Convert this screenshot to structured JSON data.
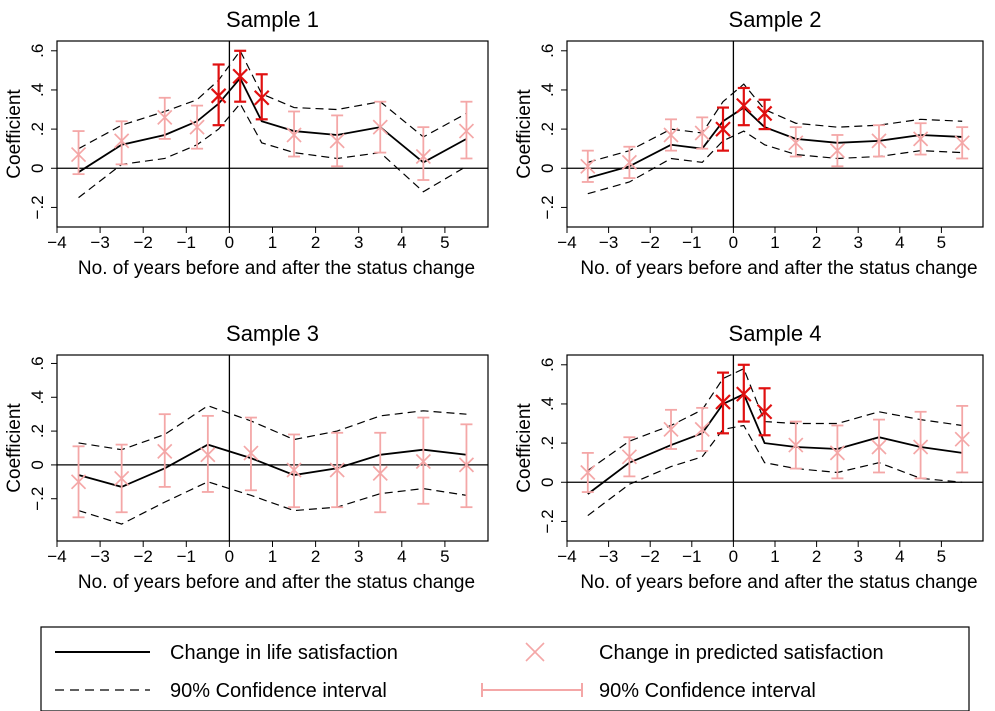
{
  "colors": {
    "line": "#000000",
    "ci_dash": "#000000",
    "marker_light": "#f4a7a7",
    "marker_dark": "#e01010",
    "errorbar_light": "#f4a7a7",
    "errorbar_dark": "#e01010"
  },
  "chart_data": [
    {
      "type": "line",
      "title": "Sample 1",
      "xlabel": "No. of years before and after the status change",
      "ylabel": "Coefficient",
      "xlim": [
        -4,
        6
      ],
      "ylim": [
        -0.3,
        0.65
      ],
      "xticks": [
        "-4",
        "-3",
        "-2",
        "-1",
        "0",
        "1",
        "2",
        "3",
        "4",
        "5"
      ],
      "yticks": [
        "-.2",
        "0",
        ".2",
        ".4",
        ".6"
      ],
      "reference_lines": {
        "x": 0,
        "y": 0
      },
      "line_series": {
        "name": "Change in life satisfaction",
        "x": [
          -3.5,
          -2.5,
          -1.5,
          -0.75,
          -0.25,
          0.25,
          0.75,
          1.5,
          2.5,
          3.5,
          4.5,
          5.5
        ],
        "y": [
          -0.02,
          0.12,
          0.17,
          0.24,
          0.33,
          0.46,
          0.24,
          0.19,
          0.17,
          0.21,
          0.03,
          0.15
        ],
        "ci_lower": [
          -0.15,
          0.02,
          0.05,
          0.12,
          0.2,
          0.33,
          0.13,
          0.08,
          0.05,
          0.08,
          -0.12,
          0.01
        ],
        "ci_upper": [
          0.1,
          0.22,
          0.29,
          0.35,
          0.45,
          0.6,
          0.38,
          0.31,
          0.3,
          0.34,
          0.16,
          0.28
        ]
      },
      "predicted_series": {
        "name": "Change in predicted satisfaction",
        "x": [
          -3.5,
          -2.5,
          -1.5,
          -0.75,
          -0.25,
          0.25,
          0.75,
          1.5,
          2.5,
          3.5,
          4.5,
          5.5
        ],
        "y": [
          0.07,
          0.14,
          0.26,
          0.21,
          0.37,
          0.47,
          0.36,
          0.17,
          0.14,
          0.21,
          0.06,
          0.19
        ],
        "ci_lower": [
          -0.03,
          0.02,
          0.15,
          0.1,
          0.22,
          0.34,
          0.25,
          0.06,
          0.01,
          0.08,
          -0.06,
          0.05
        ],
        "ci_upper": [
          0.19,
          0.24,
          0.36,
          0.32,
          0.53,
          0.6,
          0.48,
          0.29,
          0.27,
          0.34,
          0.21,
          0.34
        ],
        "emphasis": [
          false,
          false,
          false,
          false,
          true,
          true,
          true,
          false,
          false,
          false,
          false,
          false
        ]
      }
    },
    {
      "type": "line",
      "title": "Sample 2",
      "xlabel": "No. of years before and after the status change",
      "ylabel": "Coefficient",
      "xlim": [
        -4,
        6
      ],
      "ylim": [
        -0.3,
        0.65
      ],
      "xticks": [
        "-4",
        "-3",
        "-2",
        "-1",
        "0",
        "1",
        "2",
        "3",
        "4",
        "5"
      ],
      "yticks": [
        "-.2",
        "0",
        ".2",
        ".4",
        ".6"
      ],
      "reference_lines": {
        "x": 0,
        "y": 0
      },
      "line_series": {
        "name": "Change in life satisfaction",
        "x": [
          -3.5,
          -2.5,
          -1.5,
          -0.75,
          -0.25,
          0.25,
          0.75,
          1.5,
          2.5,
          3.5,
          4.5,
          5.5
        ],
        "y": [
          -0.05,
          0.01,
          0.12,
          0.1,
          0.24,
          0.31,
          0.21,
          0.15,
          0.13,
          0.14,
          0.17,
          0.16
        ],
        "ci_lower": [
          -0.13,
          -0.07,
          0.05,
          0.03,
          0.14,
          0.19,
          0.12,
          0.07,
          0.05,
          0.06,
          0.09,
          0.08
        ],
        "ci_upper": [
          0.03,
          0.09,
          0.2,
          0.18,
          0.34,
          0.43,
          0.3,
          0.23,
          0.21,
          0.22,
          0.25,
          0.24
        ]
      },
      "predicted_series": {
        "name": "Change in predicted satisfaction",
        "x": [
          -3.5,
          -2.5,
          -1.5,
          -0.75,
          -0.25,
          0.25,
          0.75,
          1.5,
          2.5,
          3.5,
          4.5,
          5.5
        ],
        "y": [
          0.01,
          0.03,
          0.17,
          0.18,
          0.2,
          0.32,
          0.28,
          0.13,
          0.09,
          0.14,
          0.15,
          0.13
        ],
        "ci_lower": [
          -0.07,
          -0.05,
          0.09,
          0.1,
          0.09,
          0.22,
          0.2,
          0.06,
          0.01,
          0.06,
          0.07,
          0.05
        ],
        "ci_upper": [
          0.09,
          0.11,
          0.25,
          0.26,
          0.31,
          0.41,
          0.35,
          0.21,
          0.17,
          0.22,
          0.23,
          0.21
        ],
        "emphasis": [
          false,
          false,
          false,
          false,
          true,
          true,
          true,
          false,
          false,
          false,
          false,
          false
        ]
      }
    },
    {
      "type": "line",
      "title": "Sample 3",
      "xlabel": "No. of years before and after the status change",
      "ylabel": "Coefficient",
      "xlim": [
        -4,
        6
      ],
      "ylim": [
        -0.45,
        0.65
      ],
      "xticks": [
        "-4",
        "-3",
        "-2",
        "-1",
        "0",
        "1",
        "2",
        "3",
        "4",
        "5"
      ],
      "yticks": [
        "-.2",
        "0",
        ".2",
        ".4",
        ".6"
      ],
      "reference_lines": {
        "x": 0,
        "y": 0
      },
      "line_series": {
        "name": "Change in life satisfaction",
        "x": [
          -3.5,
          -2.5,
          -1.5,
          -0.5,
          0.5,
          1.5,
          2.5,
          3.5,
          4.5,
          5.5
        ],
        "y": [
          -0.06,
          -0.13,
          -0.02,
          0.12,
          0.04,
          -0.06,
          -0.02,
          0.06,
          0.09,
          0.06
        ],
        "ci_lower": [
          -0.27,
          -0.35,
          -0.22,
          -0.1,
          -0.18,
          -0.27,
          -0.25,
          -0.17,
          -0.14,
          -0.18
        ],
        "ci_upper": [
          0.13,
          0.09,
          0.18,
          0.35,
          0.26,
          0.15,
          0.2,
          0.29,
          0.32,
          0.3
        ]
      },
      "predicted_series": {
        "name": "Change in predicted satisfaction",
        "x": [
          -3.5,
          -2.5,
          -1.5,
          -0.5,
          0.5,
          1.5,
          2.5,
          3.5,
          4.5,
          5.5
        ],
        "y": [
          -0.1,
          -0.08,
          0.08,
          0.06,
          0.07,
          -0.03,
          -0.03,
          -0.05,
          0.02,
          0.0
        ],
        "ci_lower": [
          -0.31,
          -0.28,
          -0.13,
          -0.16,
          -0.15,
          -0.25,
          -0.25,
          -0.28,
          -0.23,
          -0.25
        ],
        "ci_upper": [
          0.11,
          0.12,
          0.3,
          0.29,
          0.28,
          0.18,
          0.19,
          0.19,
          0.28,
          0.24
        ],
        "emphasis": [
          false,
          false,
          false,
          false,
          false,
          false,
          false,
          false,
          false,
          false
        ]
      }
    },
    {
      "type": "line",
      "title": "Sample 4",
      "xlabel": "No. of years before and after the status change",
      "ylabel": "Coefficient",
      "xlim": [
        -4,
        6
      ],
      "ylim": [
        -0.3,
        0.65
      ],
      "xticks": [
        "-4",
        "-3",
        "-2",
        "-1",
        "0",
        "1",
        "2",
        "3",
        "4",
        "5"
      ],
      "yticks": [
        "-.2",
        "0",
        ".2",
        ".4",
        ".6"
      ],
      "reference_lines": {
        "x": 0,
        "y": 0
      },
      "line_series": {
        "name": "Change in life satisfaction",
        "x": [
          -3.5,
          -2.5,
          -1.5,
          -0.75,
          -0.25,
          0.25,
          0.75,
          1.5,
          2.5,
          3.5,
          4.5,
          5.5
        ],
        "y": [
          -0.06,
          0.1,
          0.19,
          0.25,
          0.4,
          0.45,
          0.2,
          0.18,
          0.17,
          0.23,
          0.18,
          0.15
        ],
        "ci_lower": [
          -0.17,
          -0.01,
          0.08,
          0.13,
          0.27,
          0.29,
          0.1,
          0.07,
          0.05,
          0.1,
          0.02,
          0.0
        ],
        "ci_upper": [
          0.06,
          0.21,
          0.29,
          0.37,
          0.53,
          0.58,
          0.31,
          0.3,
          0.3,
          0.36,
          0.32,
          0.29
        ]
      },
      "predicted_series": {
        "name": "Change in predicted satisfaction",
        "x": [
          -3.5,
          -2.5,
          -1.5,
          -0.75,
          -0.25,
          0.25,
          0.75,
          1.5,
          2.5,
          3.5,
          4.5,
          5.5
        ],
        "y": [
          0.05,
          0.13,
          0.27,
          0.27,
          0.41,
          0.45,
          0.36,
          0.19,
          0.15,
          0.18,
          0.18,
          0.22
        ],
        "ci_lower": [
          -0.05,
          0.03,
          0.17,
          0.16,
          0.25,
          0.31,
          0.24,
          0.07,
          0.02,
          0.05,
          0.02,
          0.05
        ],
        "ci_upper": [
          0.15,
          0.23,
          0.37,
          0.38,
          0.56,
          0.6,
          0.48,
          0.31,
          0.29,
          0.32,
          0.36,
          0.39
        ],
        "emphasis": [
          false,
          false,
          false,
          false,
          true,
          true,
          true,
          false,
          false,
          false,
          false,
          false
        ]
      }
    }
  ],
  "legend": {
    "items": [
      "Change in life satisfaction",
      "Change in predicted satisfaction",
      "90% Confidence interval",
      "90% Confidence interval"
    ]
  }
}
